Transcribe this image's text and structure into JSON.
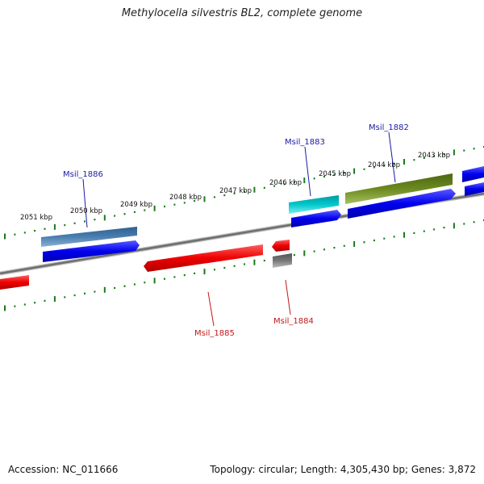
{
  "title": "Methylocella silvestris BL2, complete genome",
  "scale_labels": [
    "2051 kbp",
    "2050 kbp",
    "2049 kbp",
    "2048 kbp",
    "2047 kbp",
    "2046 kbp",
    "2045 kbp",
    "2044 kbp",
    "2043 kbp"
  ],
  "genes": {
    "msil_1886": "Msil_1886",
    "msil_1885": "Msil_1885",
    "msil_1884": "Msil_1884",
    "msil_1883": "Msil_1883",
    "msil_1882": "Msil_1882"
  },
  "colors": {
    "forward_strand": "#0000ee",
    "reverse_strand": "#ee0000",
    "backbone": "#888888",
    "ticks": "#1a7a1a",
    "label_blue": "#1a1aa8",
    "label_red": "#c01818",
    "steelblue_feature": "#4a7eb0",
    "cyan_feature": "#00c8cc",
    "olive_feature": "#6b8a1e",
    "gray_feature": "#777777"
  },
  "footer": {
    "accession": "Accession: NC_011666",
    "summary": "Topology: circular; Length: 4,305,430 bp; Genes: 3,872"
  }
}
